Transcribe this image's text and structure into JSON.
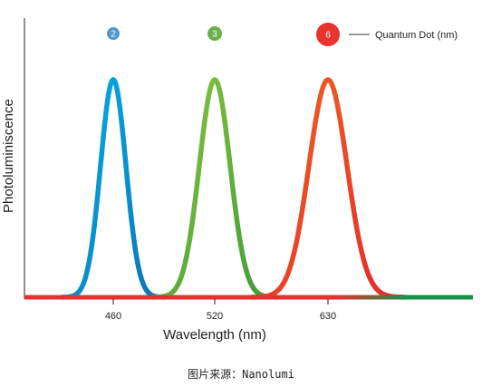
{
  "chart_data": {
    "type": "line",
    "xlabel": "Wavelength (nm)",
    "ylabel": "Photoluminiscence",
    "x_ticks": [
      "460",
      "520",
      "630"
    ],
    "legend": {
      "label": "Quantum Dot (nm)",
      "position": "top-right"
    },
    "series": [
      {
        "marker": "2",
        "peak_x": 460,
        "color_top": "#06b0e6",
        "color_bottom": "#0b74b8",
        "bubble_color": "#4f97cf"
      },
      {
        "marker": "3",
        "peak_x": 520,
        "color_top": "#8cc63f",
        "color_bottom": "#3d9b3a",
        "bubble_color": "#6ab04c"
      },
      {
        "marker": "6",
        "peak_x": 630,
        "color_top": "#f26522",
        "color_bottom": "#e02b2b",
        "bubble_color": "#e8332e"
      }
    ],
    "baseline_colors": [
      "#e8302f",
      "#17924a"
    ],
    "grid": false
  },
  "caption": "图片来源：Nanolumi"
}
